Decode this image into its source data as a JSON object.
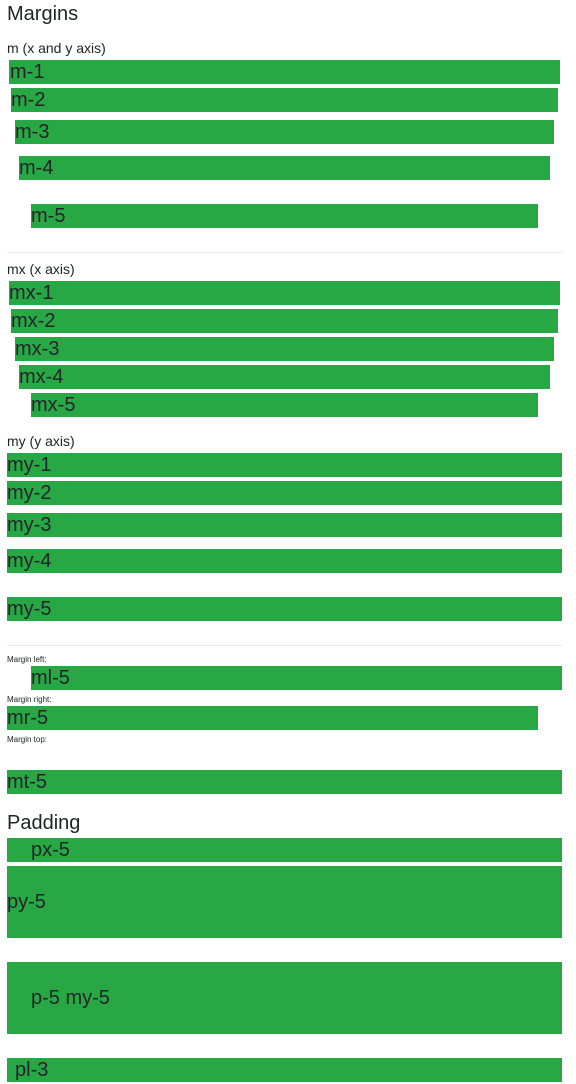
{
  "margins": {
    "title": "Margins",
    "m_label": "m (x and y axis)",
    "m_items": [
      "m-1",
      "m-2",
      "m-3",
      "m-4",
      "m-5"
    ],
    "mx_label": "mx (x axis)",
    "mx_items": [
      "mx-1",
      "mx-2",
      "mx-3",
      "mx-4",
      "mx-5"
    ],
    "my_label": "my (y axis)",
    "my_items": [
      "my-1",
      "my-2",
      "my-3",
      "my-4",
      "my-5"
    ],
    "ml_caption": "Margin left:",
    "ml_item": "ml-5",
    "mr_caption": "Margin right:",
    "mr_item": "mr-5",
    "mt_caption": "Margin top:",
    "mt_item": "mt-5"
  },
  "padding": {
    "title": "Padding",
    "px_item": "px-5",
    "py_item": "py-5",
    "pmy_item": "p-5 my-5",
    "pl_item": "pl-3"
  },
  "colors": {
    "bar": "#28a745",
    "text": "#212529",
    "divider": "#ececec"
  }
}
